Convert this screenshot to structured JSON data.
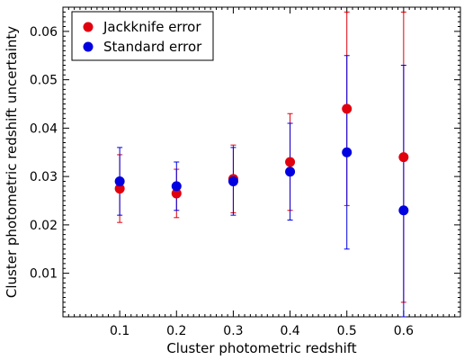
{
  "chart_data": {
    "type": "scatter",
    "xlabel": "Cluster photometric redshift",
    "ylabel": "Cluster photometric redshift uncertainty",
    "xlim": [
      0.0,
      0.7
    ],
    "ylim": [
      0.001,
      0.065
    ],
    "xticks": [
      "0.1",
      "0.2",
      "0.3",
      "0.4",
      "0.5",
      "0.6"
    ],
    "yticks": [
      "0.01",
      "0.02",
      "0.03",
      "0.04",
      "0.05",
      "0.06"
    ],
    "grid": false,
    "legend": "top-left",
    "series": [
      {
        "name": "Jackknife error",
        "color": "#e0000e",
        "points": [
          {
            "x": 0.1,
            "y": 0.0275,
            "low": 0.0205,
            "high": 0.0345
          },
          {
            "x": 0.2,
            "y": 0.0265,
            "low": 0.0215,
            "high": 0.0315
          },
          {
            "x": 0.3,
            "y": 0.0295,
            "low": 0.0225,
            "high": 0.0365
          },
          {
            "x": 0.4,
            "y": 0.033,
            "low": 0.023,
            "high": 0.043
          },
          {
            "x": 0.5,
            "y": 0.044,
            "low": 0.024,
            "high": 0.064
          },
          {
            "x": 0.6,
            "y": 0.034,
            "low": 0.004,
            "high": 0.064
          }
        ]
      },
      {
        "name": "Standard error",
        "color": "#0000e0",
        "points": [
          {
            "x": 0.1,
            "y": 0.029,
            "low": 0.022,
            "high": 0.036
          },
          {
            "x": 0.2,
            "y": 0.028,
            "low": 0.023,
            "high": 0.033
          },
          {
            "x": 0.3,
            "y": 0.029,
            "low": 0.022,
            "high": 0.036
          },
          {
            "x": 0.4,
            "y": 0.031,
            "low": 0.021,
            "high": 0.041
          },
          {
            "x": 0.5,
            "y": 0.035,
            "low": 0.015,
            "high": 0.055
          },
          {
            "x": 0.6,
            "y": 0.023,
            "low": 0.001,
            "high": 0.053
          }
        ]
      }
    ]
  }
}
